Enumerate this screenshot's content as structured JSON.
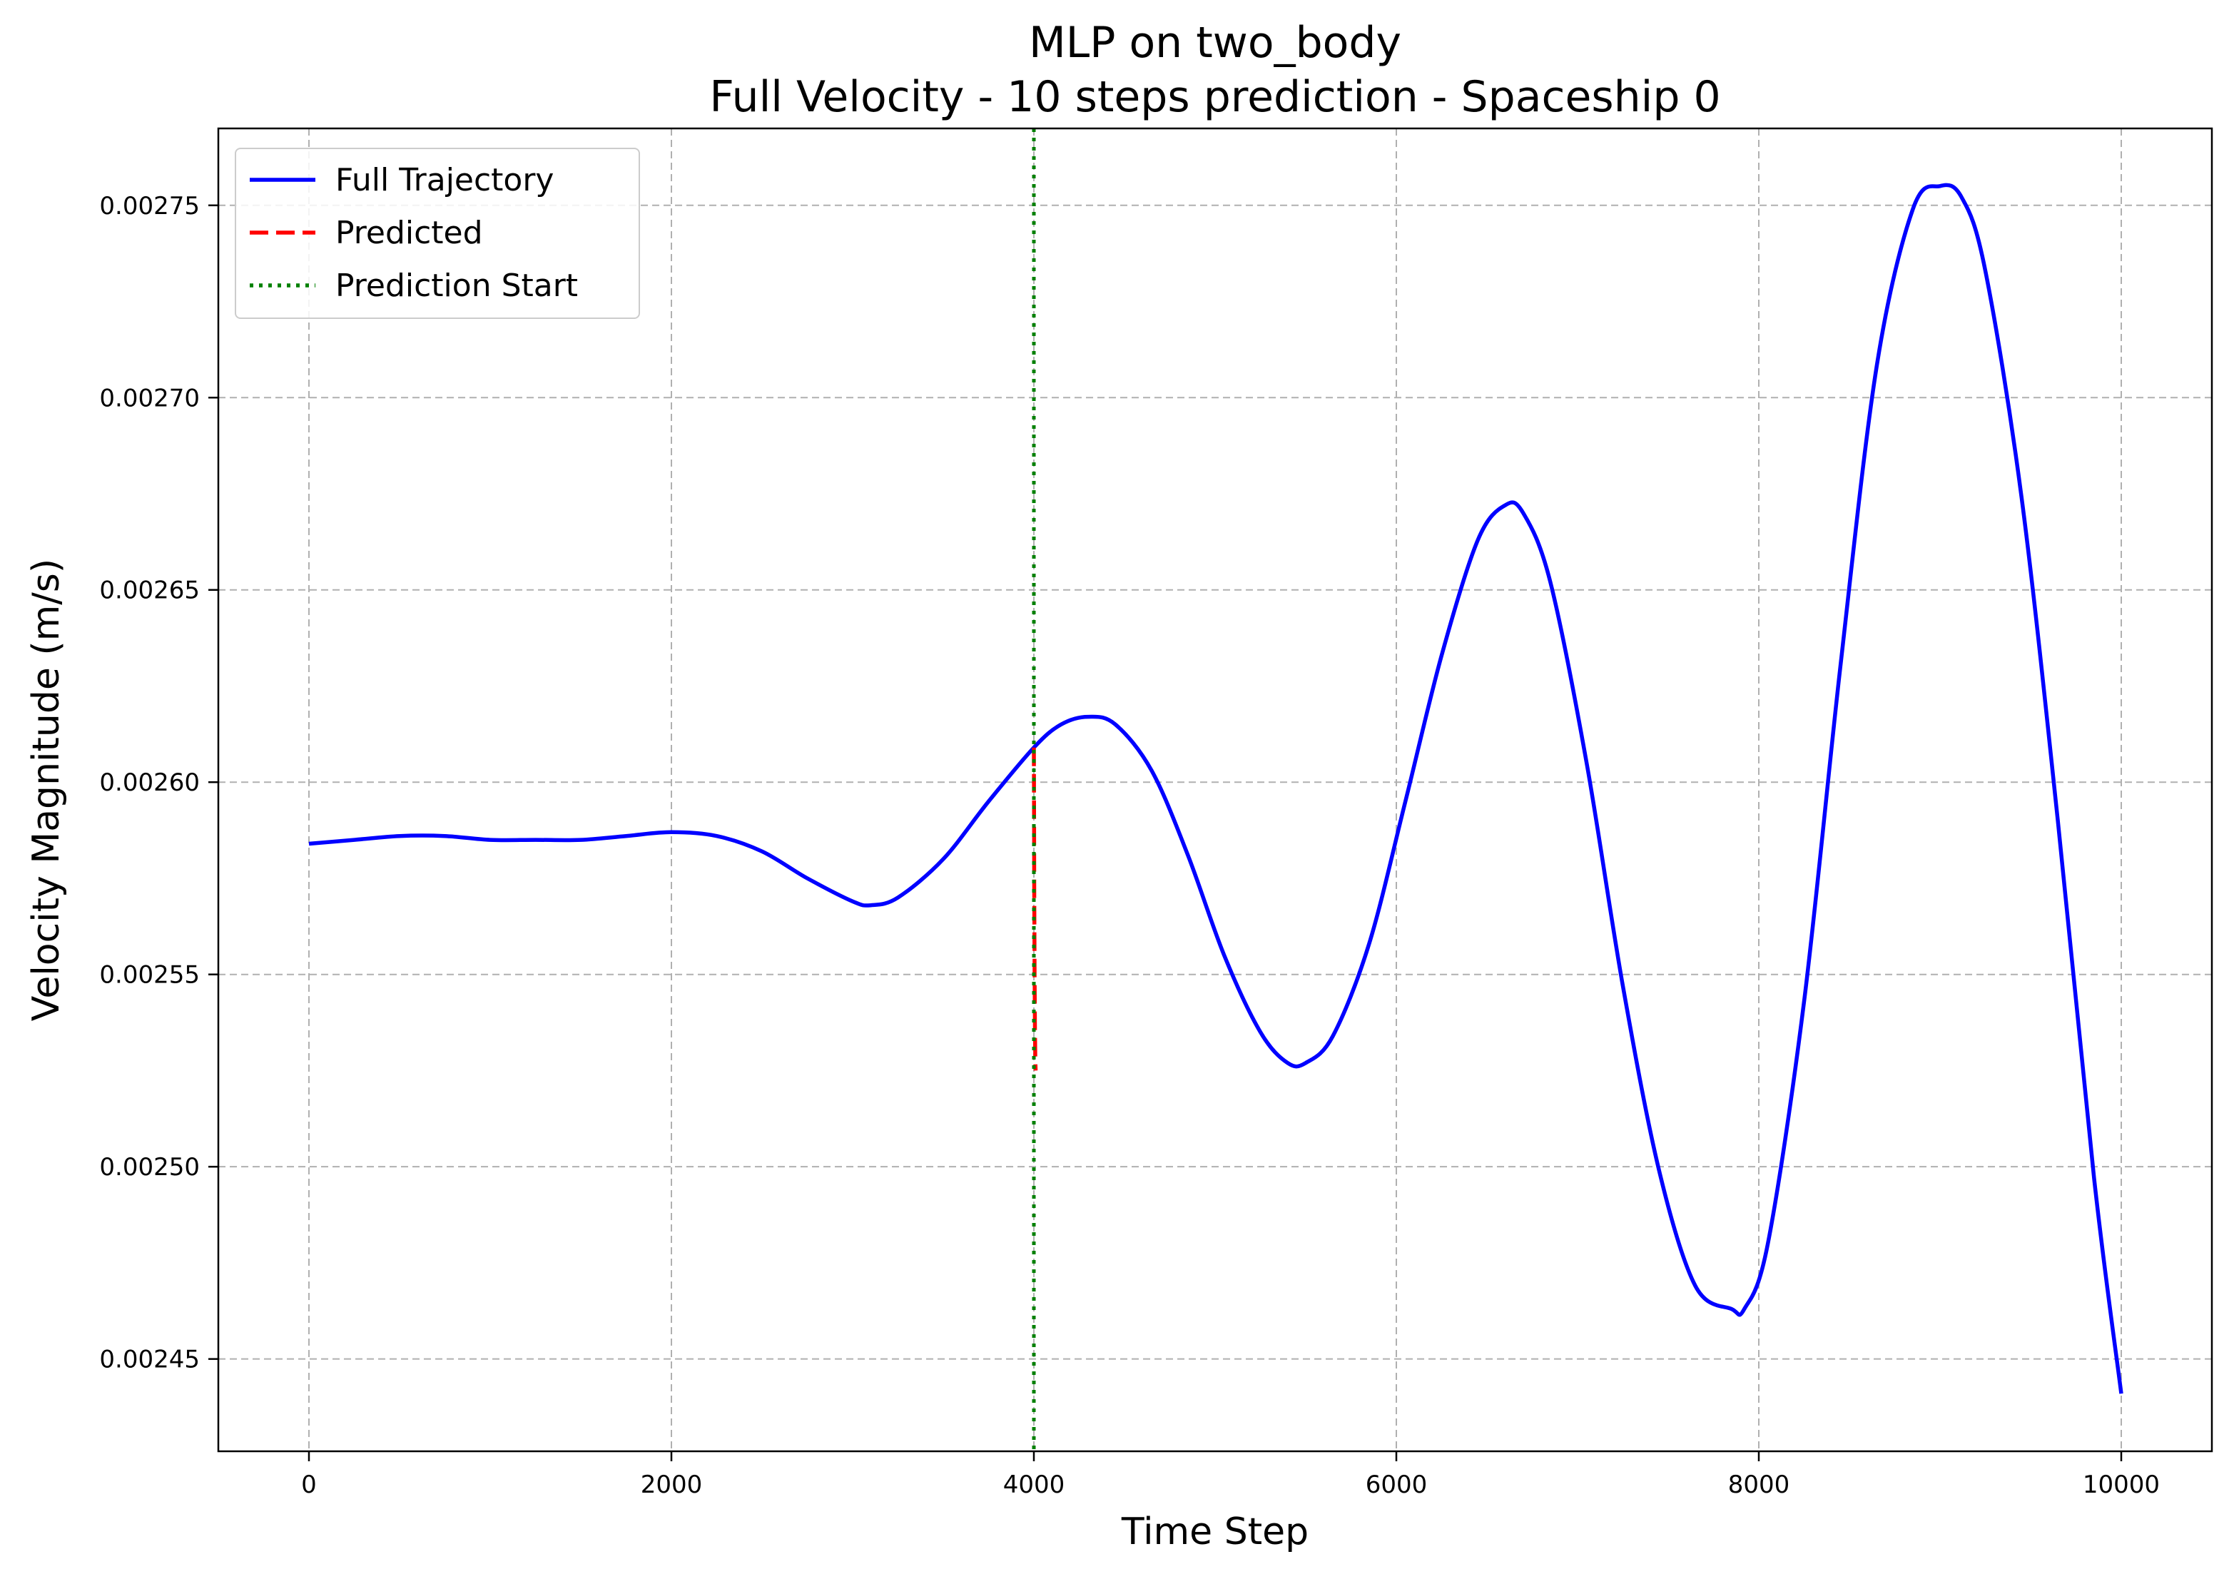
{
  "chart_data": {
    "type": "line",
    "title": "MLP on two_body",
    "subtitle": "Full Velocity - 10 steps prediction - Spaceship 0",
    "xlabel": "Time Step",
    "ylabel": "Velocity Magnitude (m/s)",
    "xlim": [
      -500,
      10500
    ],
    "ylim": [
      0.002426,
      0.00277
    ],
    "xticks": [
      0,
      2000,
      4000,
      6000,
      8000,
      10000
    ],
    "xtick_labels": [
      "0",
      "2000",
      "4000",
      "6000",
      "8000",
      "10000"
    ],
    "yticks": [
      0.00245,
      0.0025,
      0.00255,
      0.0026,
      0.00265,
      0.0027,
      0.00275
    ],
    "ytick_labels": [
      "0.00245",
      "0.00250",
      "0.00255",
      "0.00260",
      "0.00265",
      "0.00270",
      "0.00275"
    ],
    "grid": true,
    "legend_position": "top-left",
    "series": [
      {
        "name": "Full Trajectory",
        "color": "#0000ff",
        "style": "solid",
        "x": [
          0,
          250,
          500,
          750,
          1000,
          1250,
          1500,
          1750,
          2000,
          2250,
          2500,
          2750,
          3000,
          3100,
          3250,
          3500,
          3750,
          4000,
          4150,
          4300,
          4450,
          4650,
          4850,
          5050,
          5250,
          5400,
          5500,
          5650,
          5850,
          6050,
          6250,
          6450,
          6600,
          6700,
          6850,
          7050,
          7250,
          7450,
          7650,
          7850,
          7920,
          8050,
          8250,
          8450,
          8650,
          8850,
          9000,
          9120,
          9250,
          9450,
          9650,
          9850,
          10000
        ],
        "y": [
          0.002584,
          0.002585,
          0.002586,
          0.002586,
          0.002585,
          0.002585,
          0.002585,
          0.002586,
          0.002587,
          0.002586,
          0.002582,
          0.002575,
          0.002569,
          0.002568,
          0.00257,
          0.00258,
          0.002595,
          0.002609,
          0.002615,
          0.002617,
          0.002615,
          0.002603,
          0.002581,
          0.002555,
          0.002535,
          0.002527,
          0.002527,
          0.002534,
          0.002558,
          0.002595,
          0.002633,
          0.002663,
          0.002672,
          0.00267,
          0.002652,
          0.002605,
          0.002547,
          0.002499,
          0.002469,
          0.002463,
          0.002463,
          0.00248,
          0.002543,
          0.00263,
          0.002708,
          0.002749,
          0.002755,
          0.002752,
          0.002733,
          0.002674,
          0.00259,
          0.002497,
          0.002441
        ]
      },
      {
        "name": "Predicted",
        "color": "#ff0000",
        "style": "dashed",
        "x": [
          4000,
          4001,
          4002,
          4003,
          4004,
          4005,
          4006,
          4007,
          4008,
          4009,
          4010
        ],
        "y": [
          0.002609,
          0.00259,
          0.002572,
          0.00256,
          0.00255,
          0.002542,
          0.002536,
          0.002531,
          0.002528,
          0.002526,
          0.002525
        ]
      }
    ],
    "vlines": [
      {
        "name": "Prediction Start",
        "x": 4000,
        "color": "#008000",
        "style": "dotted"
      }
    ]
  }
}
